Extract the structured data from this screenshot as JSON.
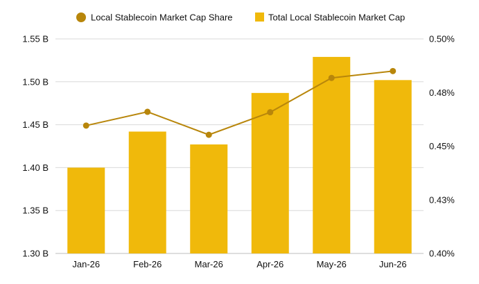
{
  "chart_data": {
    "type": "bar",
    "categories": [
      "Jan-26",
      "Feb-26",
      "Mar-26",
      "Apr-26",
      "May-26",
      "Jun-26"
    ],
    "series": [
      {
        "name": "Total Local Stablecoin Market Cap",
        "type": "bar",
        "axis": "left",
        "color": "#F0B90B",
        "values": [
          1.4,
          1.442,
          1.427,
          1.487,
          1.529,
          1.502
        ]
      },
      {
        "name": "Local Stablecoin Market Cap Share",
        "type": "line",
        "axis": "right",
        "color": "#B8860B",
        "values": [
          0.4596,
          0.466,
          0.4553,
          0.4658,
          0.4818,
          0.485
        ]
      }
    ],
    "left_axis": {
      "ylim": [
        1.3,
        1.55
      ],
      "ticks": [
        1.3,
        1.35,
        1.4,
        1.45,
        1.5,
        1.55
      ],
      "tick_labels": [
        "1.30 B",
        "1.35 B",
        "1.40 B",
        "1.45 B",
        "1.50 B",
        "1.55 B"
      ]
    },
    "right_axis": {
      "ylim": [
        0.4,
        0.5
      ],
      "tick_labels": [
        "0.40%",
        "0.43%",
        "0.45%",
        "0.48%",
        "0.50%"
      ]
    },
    "legend": {
      "position": "top-center",
      "items": [
        "Local Stablecoin Market Cap Share",
        "Total Local Stablecoin Market Cap"
      ]
    },
    "grid": true,
    "title": "",
    "xlabel": "",
    "ylabel": ""
  }
}
